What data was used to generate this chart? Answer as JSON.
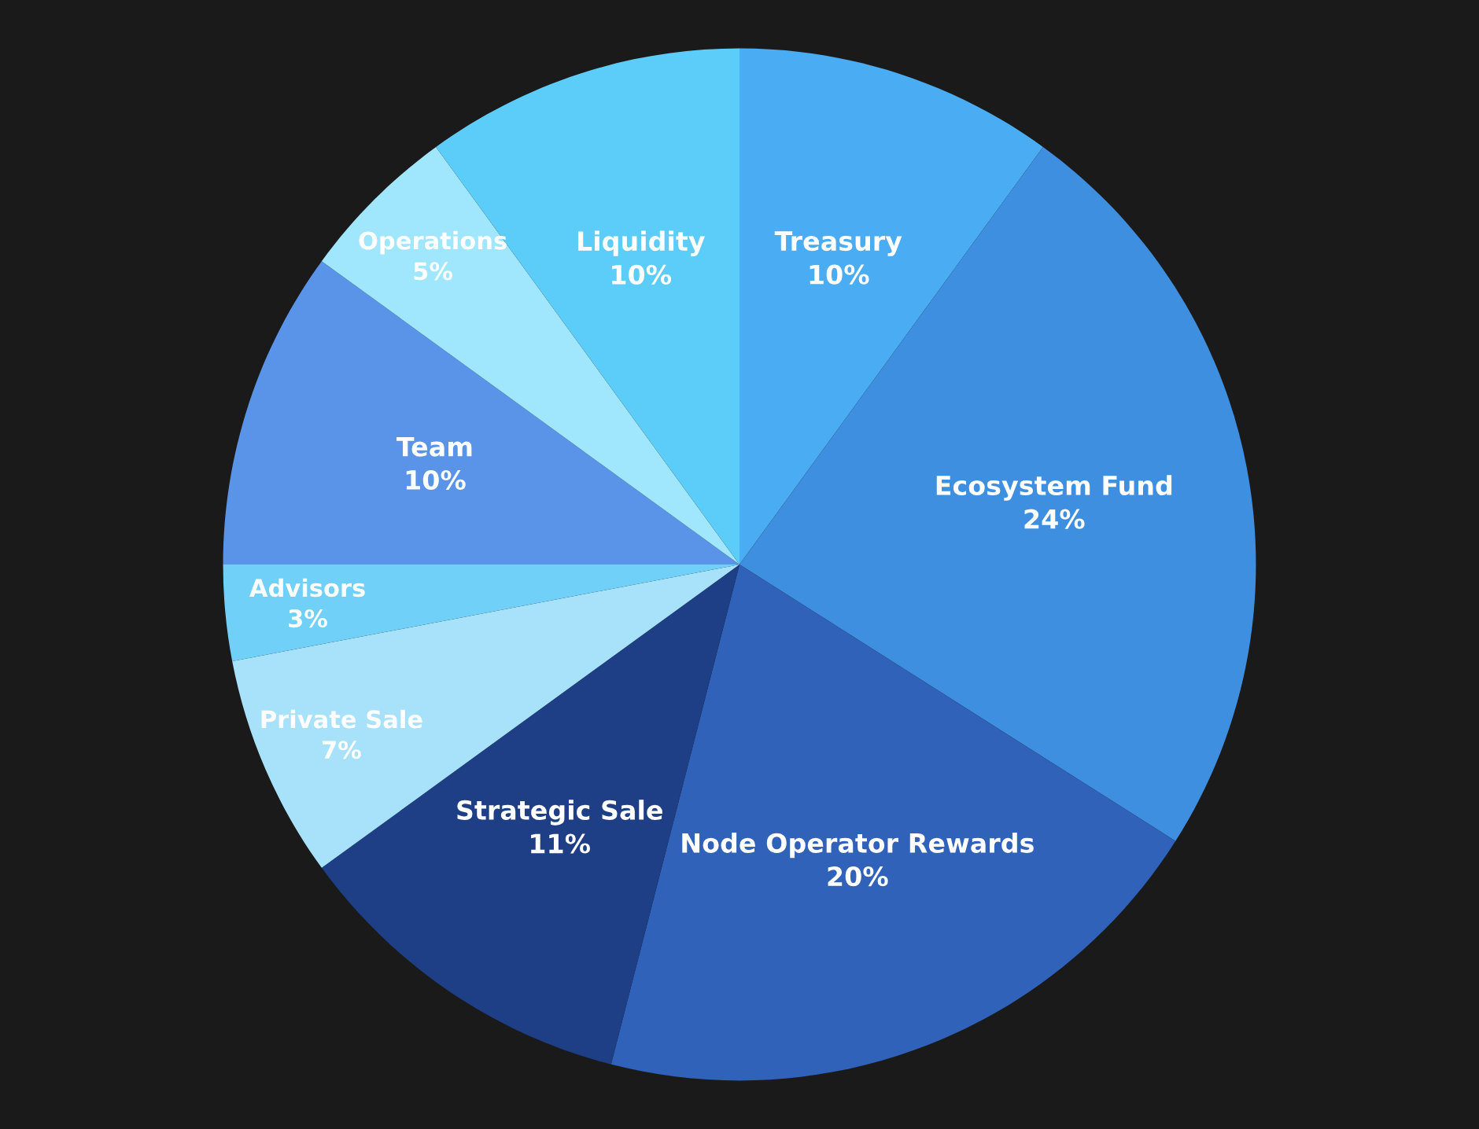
{
  "chart_data": {
    "type": "pie",
    "categories": [
      "Treasury",
      "Ecosystem Fund",
      "Node Operator Rewards",
      "Strategic Sale",
      "Private Sale",
      "Advisors",
      "Team",
      "Operations",
      "Liquidity"
    ],
    "values": [
      10,
      24,
      20,
      11,
      7,
      3,
      10,
      5,
      10
    ],
    "value_labels": [
      "10%",
      "24%",
      "20%",
      "11%",
      "7%",
      "3%",
      "10%",
      "5%",
      "10%"
    ],
    "colors": [
      "#4aacf2",
      "#3f8fe0",
      "#2f62b8",
      "#1e3f85",
      "#a8e2fa",
      "#70d0f7",
      "#5a94e8",
      "#a0e6fc",
      "#5ccdf8"
    ],
    "legend": false
  }
}
